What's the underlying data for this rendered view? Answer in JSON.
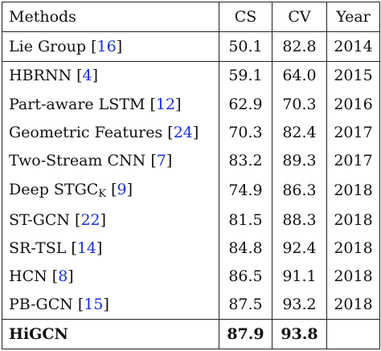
{
  "headers": [
    "Methods",
    "CS",
    "CV",
    "Year"
  ],
  "rows": [
    {
      "method": "Lie Group",
      "ref": "16",
      "cs": "50.1",
      "cv": "82.8",
      "year": "2014"
    },
    {
      "method": "HBRNN",
      "ref": "4",
      "cs": "59.1",
      "cv": "64.0",
      "year": "2015"
    },
    {
      "method": "Part-aware LSTM",
      "ref": "12",
      "cs": "62.9",
      "cv": "70.3",
      "year": "2016"
    },
    {
      "method": "Geometric Features",
      "ref": "24",
      "cs": "70.3",
      "cv": "82.4",
      "year": "2017"
    },
    {
      "method": "Two-Stream CNN",
      "ref": "7",
      "cs": "83.2",
      "cv": "89.3",
      "year": "2017"
    },
    {
      "method": "Deep STGC",
      "sub": "K",
      "ref": "9",
      "cs": "74.9",
      "cv": "86.3",
      "year": "2018"
    },
    {
      "method": "ST-GCN",
      "ref": "22",
      "cs": "81.5",
      "cv": "88.3",
      "year": "2018"
    },
    {
      "method": "SR-TSL",
      "ref": "14",
      "cs": "84.8",
      "cv": "92.4",
      "year": "2018"
    },
    {
      "method": "HCN",
      "ref": "8",
      "cs": "86.5",
      "cv": "91.1",
      "year": "2018"
    },
    {
      "method": "PB-GCN",
      "ref": "15",
      "cs": "87.5",
      "cv": "93.2",
      "year": "2018"
    }
  ],
  "final": {
    "method": "HiGCN",
    "cs": "87.9",
    "cv": "93.8",
    "year": ""
  }
}
